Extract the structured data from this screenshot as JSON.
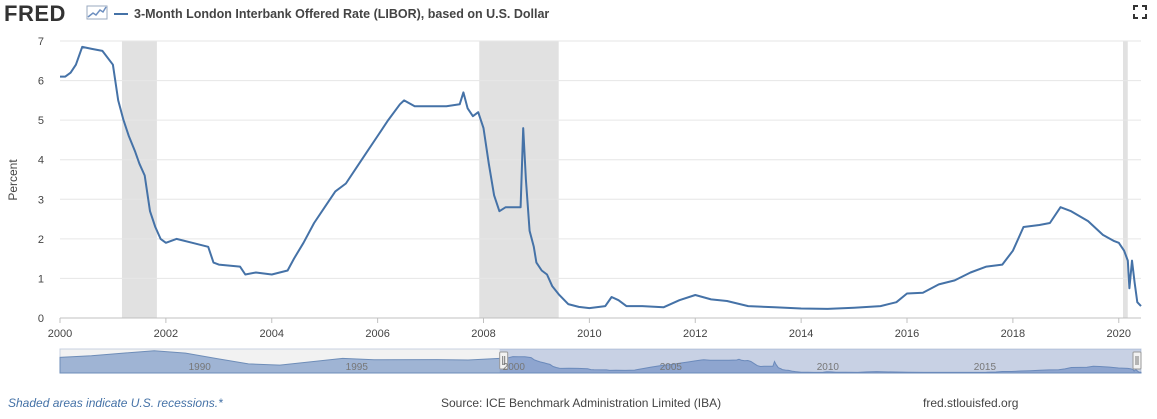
{
  "header": {
    "logo_text": "FRED",
    "series_title": "3-Month London Interbank Offered Rate (LIBOR), based on U.S. Dollar",
    "line_color": "#4572a7"
  },
  "icons": {
    "fullscreen": "fullscreen-icon",
    "logo_graph": "sparkline-icon"
  },
  "footer": {
    "recession_note": "Shaded areas indicate U.S. recessions.*",
    "source": "Source: ICE Benchmark Administration Limited (IBA)",
    "site": "fred.stlouisfed.org"
  },
  "navigator": {
    "tick_labels": [
      "1990",
      "1995",
      "2000",
      "2005",
      "2010",
      "2015"
    ],
    "range": [
      1986,
      2020.42
    ],
    "selection": [
      2000,
      2020.42
    ]
  },
  "chart_data": {
    "type": "line",
    "title": "3-Month London Interbank Offered Rate (LIBOR), based on U.S. Dollar",
    "ylabel": "Percent",
    "xlabel": "",
    "xlim": [
      2000,
      2020.42
    ],
    "ylim": [
      0,
      7
    ],
    "x_ticks": [
      "2000",
      "2002",
      "2004",
      "2006",
      "2008",
      "2010",
      "2012",
      "2014",
      "2016",
      "2018",
      "2020"
    ],
    "y_ticks": [
      "0",
      "1",
      "2",
      "3",
      "4",
      "5",
      "6",
      "7"
    ],
    "grid": "horizontal",
    "recessions": [
      [
        2001.17,
        2001.83
      ],
      [
        2007.92,
        2009.42
      ],
      [
        2020.08,
        2020.17
      ]
    ],
    "series": [
      {
        "name": "3-Month London Interbank Offered Rate (LIBOR), based on U.S. Dollar",
        "color": "#4572a7",
        "x": [
          2000.0,
          2000.1,
          2000.2,
          2000.3,
          2000.42,
          2000.6,
          2000.8,
          2001.0,
          2001.1,
          2001.2,
          2001.3,
          2001.42,
          2001.5,
          2001.6,
          2001.7,
          2001.8,
          2001.9,
          2002.0,
          2002.2,
          2002.5,
          2002.8,
          2002.9,
          2003.0,
          2003.4,
          2003.5,
          2003.7,
          2004.0,
          2004.3,
          2004.42,
          2004.6,
          2004.8,
          2005.0,
          2005.2,
          2005.4,
          2005.6,
          2005.8,
          2006.0,
          2006.2,
          2006.42,
          2006.5,
          2006.7,
          2007.0,
          2007.3,
          2007.55,
          2007.62,
          2007.7,
          2007.8,
          2007.9,
          2008.0,
          2008.1,
          2008.2,
          2008.3,
          2008.42,
          2008.6,
          2008.7,
          2008.75,
          2008.8,
          2008.87,
          2008.95,
          2009.0,
          2009.1,
          2009.2,
          2009.3,
          2009.42,
          2009.6,
          2009.8,
          2010.0,
          2010.3,
          2010.42,
          2010.55,
          2010.7,
          2011.0,
          2011.4,
          2011.7,
          2012.0,
          2012.3,
          2012.6,
          2013.0,
          2013.5,
          2014.0,
          2014.5,
          2015.0,
          2015.5,
          2015.8,
          2016.0,
          2016.3,
          2016.6,
          2016.9,
          2017.2,
          2017.5,
          2017.8,
          2018.0,
          2018.2,
          2018.5,
          2018.7,
          2018.9,
          2019.1,
          2019.42,
          2019.7,
          2019.9,
          2020.0,
          2020.1,
          2020.17,
          2020.2,
          2020.25,
          2020.3,
          2020.35,
          2020.42
        ],
        "values": [
          6.1,
          6.1,
          6.2,
          6.4,
          6.85,
          6.8,
          6.75,
          6.4,
          5.5,
          5.0,
          4.6,
          4.2,
          3.9,
          3.6,
          2.7,
          2.3,
          2.0,
          1.9,
          2.0,
          1.9,
          1.8,
          1.4,
          1.35,
          1.3,
          1.1,
          1.15,
          1.1,
          1.2,
          1.5,
          1.9,
          2.4,
          2.8,
          3.2,
          3.4,
          3.8,
          4.2,
          4.6,
          5.0,
          5.4,
          5.5,
          5.35,
          5.35,
          5.35,
          5.4,
          5.7,
          5.3,
          5.1,
          5.2,
          4.8,
          3.9,
          3.1,
          2.7,
          2.8,
          2.8,
          2.8,
          4.8,
          3.5,
          2.2,
          1.8,
          1.4,
          1.2,
          1.1,
          0.8,
          0.6,
          0.35,
          0.28,
          0.25,
          0.3,
          0.53,
          0.45,
          0.3,
          0.3,
          0.27,
          0.45,
          0.58,
          0.47,
          0.43,
          0.3,
          0.27,
          0.24,
          0.23,
          0.26,
          0.3,
          0.4,
          0.62,
          0.64,
          0.85,
          0.95,
          1.15,
          1.3,
          1.35,
          1.7,
          2.3,
          2.35,
          2.4,
          2.8,
          2.7,
          2.45,
          2.1,
          1.95,
          1.9,
          1.7,
          1.45,
          0.75,
          1.45,
          0.9,
          0.4,
          0.3
        ]
      }
    ]
  }
}
